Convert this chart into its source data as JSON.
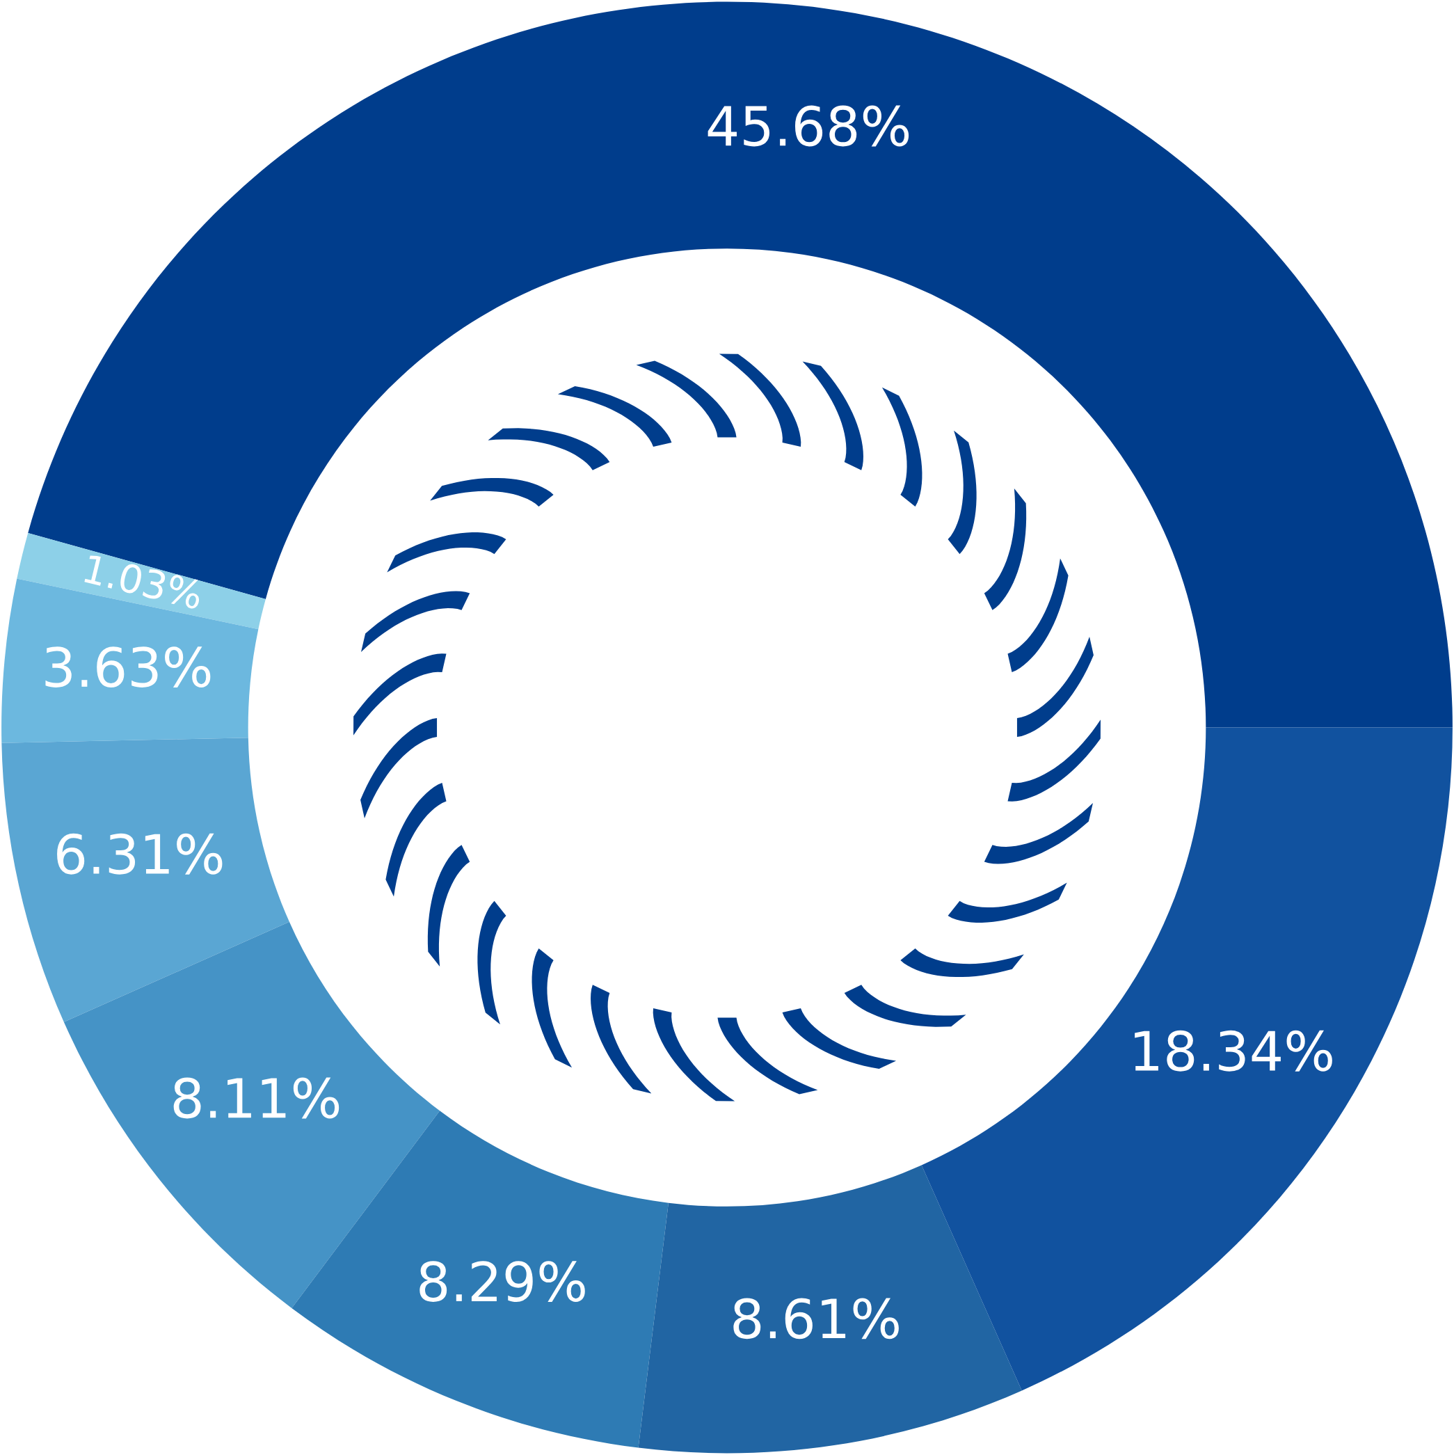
{
  "chart_data": {
    "type": "donut",
    "categories": [
      null,
      null,
      null,
      null,
      null,
      null,
      null,
      null
    ],
    "values": [
      45.68,
      1.03,
      3.63,
      6.31,
      8.11,
      8.29,
      8.61,
      18.34
    ],
    "colors": [
      "#003d8c",
      "#8dd0e8",
      "#6cb8df",
      "#5aa6d3",
      "#4593c6",
      "#2e7bb4",
      "#2165a3",
      "#11529f"
    ],
    "value_labels": [
      "45.68%",
      "1.03%",
      "3.63%",
      "6.31%",
      "8.11%",
      "8.29%",
      "8.61%",
      "18.34%"
    ]
  }
}
